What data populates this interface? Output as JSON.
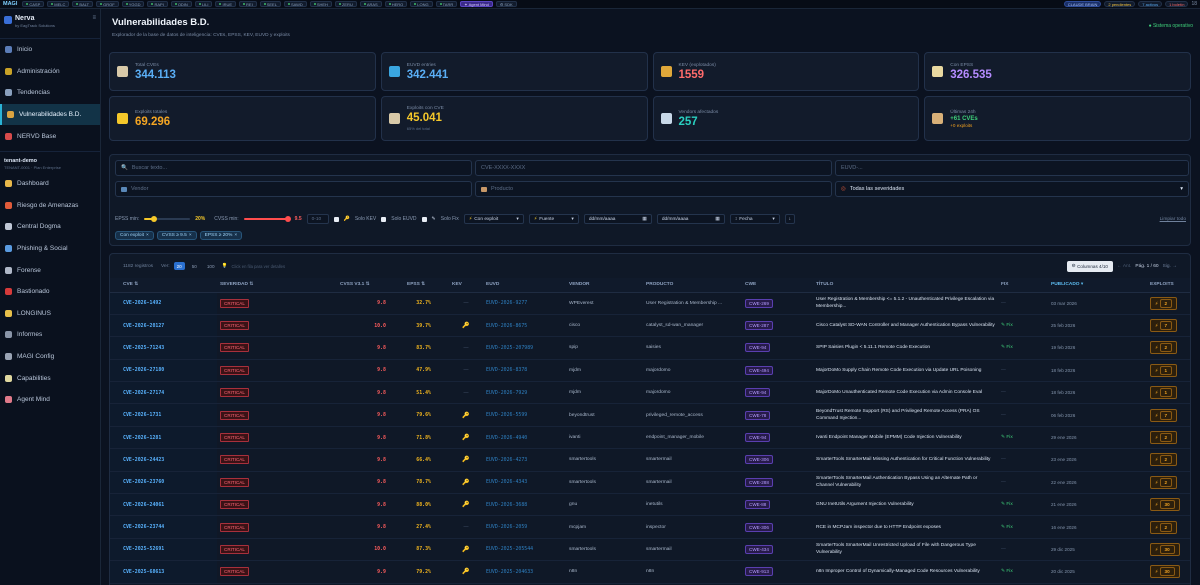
{
  "topbar": {
    "brand": "MAGI",
    "chips": [
      "CASP",
      "MELC",
      "BALT",
      "GROF",
      "YGGD",
      "RAPI",
      "ODIN",
      "LILI",
      "IRUE",
      "REI",
      "SEEL",
      "SAWD",
      "SHEH",
      "ZERU",
      "ARAS",
      "HERO",
      "LONG",
      "TARR"
    ],
    "agent": "Agent Mind",
    "sdk": "SDK",
    "claude": "CLAUDE BRAIN",
    "pending": "2 pendientes",
    "active": "7 activos",
    "bulletins": "1 boletín",
    "clock": "18"
  },
  "sidebar": {
    "name": "Nerva",
    "sub": "by EagTrack Solutions",
    "items_top": [
      {
        "label": "Inicio",
        "color": "#5b7db8"
      },
      {
        "label": "Administración",
        "color": "#c9a227"
      },
      {
        "label": "Tendencias",
        "color": "#8aa0bd"
      },
      {
        "label": "Vulnerabilidades B.D.",
        "color": "#d9a441",
        "active": true
      },
      {
        "label": "NERVD Base",
        "color": "#d84b4b"
      }
    ],
    "tenant": "tenant-demo",
    "tenant_sub": "TENANT-0001 · Plan Enterprise",
    "items_bottom": [
      {
        "label": "Dashboard",
        "color": "#e8b84a"
      },
      {
        "label": "Riesgo de Amenazas",
        "color": "#e05b3a"
      },
      {
        "label": "Central Dogma",
        "color": "#c0c8d6"
      },
      {
        "label": "Phishing & Social",
        "color": "#5a9be0"
      },
      {
        "label": "Forense",
        "color": "#b0b8c8"
      },
      {
        "label": "Bastionado",
        "color": "#d63a3a"
      },
      {
        "label": "LONGINUS",
        "color": "#e8c04a"
      },
      {
        "label": "Informes",
        "color": "#8a95a8"
      },
      {
        "label": "MAGI Config",
        "color": "#9aa4b4"
      },
      {
        "label": "Capabilities",
        "color": "#e0d8a0"
      },
      {
        "label": "Agent Mind",
        "color": "#e07a8a"
      }
    ]
  },
  "header": {
    "title": "Vulnerabilidades B.D.",
    "subtitle": "Explorador de la base de datos de inteligencia: CVEs, EPSS, KEV, EUVD y exploits",
    "status": "● Sistema operativo"
  },
  "cards": [
    {
      "label": "Total CVEs",
      "value": "344.113",
      "color": "#5aaef5",
      "icon": "#d8c9a8"
    },
    {
      "label": "EUVD entries",
      "value": "342.441",
      "color": "#5aaef5",
      "icon": "#3aa6e0"
    },
    {
      "label": "KEV (explotados)",
      "value": "1559",
      "color": "#ff6b6b",
      "icon": "#e0a83a"
    },
    {
      "label": "Con EPSS",
      "value": "326.535",
      "color": "#b58cff",
      "icon": "#e8d8a0"
    },
    {
      "label": "Exploits totales",
      "value": "69.296",
      "color": "#f5a623",
      "icon": "#f5c82a"
    },
    {
      "label": "Exploits con CVE",
      "value": "45.041",
      "color": "#f5c82a",
      "icon": "#d8c9a8",
      "note": "65% del total"
    },
    {
      "label": "Vendors afectados",
      "value": "257",
      "color": "#2ad0c0",
      "icon": "#c8d8e8"
    },
    {
      "label": "Últimas 24h",
      "v24a": "+61 CVEs",
      "v24b": "+0 exploits",
      "icon": "#d8b078"
    }
  ],
  "filters": {
    "search": "Buscar texto...",
    "cve": "CVE-XXXX-XXXX",
    "euvd": "EUVD-...",
    "vendor": "Vendor",
    "product": "Producto",
    "severity": "Todas las severidades",
    "epss_label": "EPSS min:",
    "epss_val": "20%",
    "cvss_label": "CVSS min:",
    "cvss_val": "9.5",
    "cvss_input": "0-10",
    "solo_kev": "Solo KEV",
    "solo_euvd": "Solo EUVD",
    "solo_fix": "Solo Fix",
    "exploit": "Con exploit",
    "fuente": "Fuente",
    "date1": "dd/mm/aaaa",
    "date2": "dd/mm/aaaa",
    "sort": "Fecha",
    "clear": "Limpiar todo",
    "tags": [
      "Con exploit",
      "CVSS ≥ 9.5",
      "EPSS ≥ 20%"
    ]
  },
  "table": {
    "count": "1182 registros",
    "ver": "Ver:",
    "sizes": [
      "20",
      "50",
      "100"
    ],
    "hint": "Click en fila para ver detalles",
    "columns_btn": "Columnas 4/10",
    "prev": "← Ant.",
    "page": "Pág. 1 / 60",
    "next": "Sig. →",
    "headers": [
      "CVE",
      "SEVERIDAD",
      "CVSS V3.1",
      "EPSS",
      "KEV",
      "EUVD",
      "VENDOR",
      "PRODUCTO",
      "CWE",
      "TÍTULO",
      "FIX",
      "PUBLICADO",
      "EXPLOITS"
    ],
    "rows": [
      {
        "cve": "CVE-2026-1492",
        "sev": "CRITICAL",
        "cvss": "9.8",
        "epss": "32.7%",
        "kev": false,
        "euvd": "EUVD-2026-9277",
        "vendor": "WPEverest",
        "product": "User Registration & Membership ...",
        "cwe": "CWE-269",
        "title": "User Registration & Membership <= 5.1.2 - Unauthenticated Privilege Escalation via Membership...",
        "fix": false,
        "date": "03 mar 2026",
        "exp": "2"
      },
      {
        "cve": "CVE-2026-20127",
        "sev": "CRITICAL",
        "cvss": "10.0",
        "epss": "39.7%",
        "kev": true,
        "euvd": "EUVD-2026-8675",
        "vendor": "cisco",
        "product": "catalyst_sd-wan_manager",
        "cwe": "CWE-287",
        "title": "Cisco Catalyst SD-WAN Controller and Manager Authentication Bypass Vulnerability",
        "fix": true,
        "date": "25 feb 2026",
        "exp": "7"
      },
      {
        "cve": "CVE-2025-71243",
        "sev": "CRITICAL",
        "cvss": "9.8",
        "epss": "83.7%",
        "kev": false,
        "euvd": "EUVD-2025-207989",
        "vendor": "spip",
        "product": "saisies",
        "cwe": "CWE-94",
        "title": "SPIP Saisies Plugin < 5.11.1 Remote Code Execution",
        "fix": true,
        "date": "19 feb 2026",
        "exp": "2"
      },
      {
        "cve": "CVE-2026-27180",
        "sev": "CRITICAL",
        "cvss": "9.8",
        "epss": "47.9%",
        "kev": false,
        "euvd": "EUVD-2026-8378",
        "vendor": "mjdm",
        "product": "majordomo",
        "cwe": "CWE-494",
        "title": "MajorDoMo Supply Chain Remote Code Execution via Update URL Poisoning",
        "fix": false,
        "date": "18 feb 2026",
        "exp": "1"
      },
      {
        "cve": "CVE-2026-27174",
        "sev": "CRITICAL",
        "cvss": "9.8",
        "epss": "51.4%",
        "kev": false,
        "euvd": "EUVD-2026-7929",
        "vendor": "mjdm",
        "product": "majordomo",
        "cwe": "CWE-94",
        "title": "MajorDoMo Unauthenticated Remote Code Execution via Admin Console Eval",
        "fix": false,
        "date": "18 feb 2026",
        "exp": "1"
      },
      {
        "cve": "CVE-2026-1731",
        "sev": "CRITICAL",
        "cvss": "9.8",
        "epss": "79.6%",
        "kev": true,
        "euvd": "EUVD-2026-5599",
        "vendor": "beyondtrust",
        "product": "privileged_remote_access",
        "cwe": "CWE-78",
        "title": "BeyondTrust Remote Support (RS) and Privileged Remote Access (PRA) OS Command Injection...",
        "fix": false,
        "date": "06 feb 2026",
        "exp": "7"
      },
      {
        "cve": "CVE-2026-1281",
        "sev": "CRITICAL",
        "cvss": "9.8",
        "epss": "71.8%",
        "kev": true,
        "euvd": "EUVD-2026-4940",
        "vendor": "ivanti",
        "product": "endpoint_manager_mobile",
        "cwe": "CWE-94",
        "title": "Ivanti Endpoint Manager Mobile (EPMM) Code Injection Vulnerability",
        "fix": true,
        "date": "29 ene 2026",
        "exp": "2"
      },
      {
        "cve": "CVE-2026-24423",
        "sev": "CRITICAL",
        "cvss": "9.8",
        "epss": "66.4%",
        "kev": true,
        "euvd": "EUVD-2026-4273",
        "vendor": "smartertools",
        "product": "smartermail",
        "cwe": "CWE-306",
        "title": "SmarterTools SmarterMail Missing Authentication for Critical Function Vulnerability",
        "fix": false,
        "date": "23 ene 2026",
        "exp": "2"
      },
      {
        "cve": "CVE-2026-23760",
        "sev": "CRITICAL",
        "cvss": "9.8",
        "epss": "78.7%",
        "kev": true,
        "euvd": "EUVD-2026-4343",
        "vendor": "smartertools",
        "product": "smartermail",
        "cwe": "CWE-288",
        "title": "SmarterTools SmarterMail Authentication Bypass Using an Alternate Path or Channel Vulnerability",
        "fix": false,
        "date": "22 ene 2026",
        "exp": "2"
      },
      {
        "cve": "CVE-2026-24061",
        "sev": "CRITICAL",
        "cvss": "9.8",
        "epss": "88.0%",
        "kev": true,
        "euvd": "EUVD-2026-3688",
        "vendor": "gnu",
        "product": "inetutils",
        "cwe": "CWE-88",
        "title": "GNU InetUtils Argument Injection Vulnerability",
        "fix": true,
        "date": "21 ene 2026",
        "exp": "30"
      },
      {
        "cve": "CVE-2026-23744",
        "sev": "CRITICAL",
        "cvss": "9.8",
        "epss": "27.4%",
        "kev": false,
        "euvd": "EUVD-2026-2059",
        "vendor": "mcpjam",
        "product": "inspector",
        "cwe": "CWE-306",
        "title": "RCE in MCPJam inspector due to HTTP Endpoint exposes",
        "fix": true,
        "date": "16 ene 2026",
        "exp": "2"
      },
      {
        "cve": "CVE-2025-52691",
        "sev": "CRITICAL",
        "cvss": "10.0",
        "epss": "87.3%",
        "kev": true,
        "euvd": "EUVD-2025-205544",
        "vendor": "smartertools",
        "product": "smartermail",
        "cwe": "CWE-434",
        "title": "SmarterTools SmarterMail Unrestricted Upload of File with Dangerous Type Vulnerability",
        "fix": false,
        "date": "29 dic 2025",
        "exp": "30"
      },
      {
        "cve": "CVE-2025-68613",
        "sev": "CRITICAL",
        "cvss": "9.9",
        "epss": "79.2%",
        "kev": true,
        "euvd": "EUVD-2025-204633",
        "vendor": "n8n",
        "product": "n8n",
        "cwe": "CWE-913",
        "title": "n8n Improper Control of Dynamically-Managed Code Resources Vulnerability",
        "fix": true,
        "date": "20 dic 2025",
        "exp": "30"
      }
    ],
    "fix_label": "Fix"
  }
}
